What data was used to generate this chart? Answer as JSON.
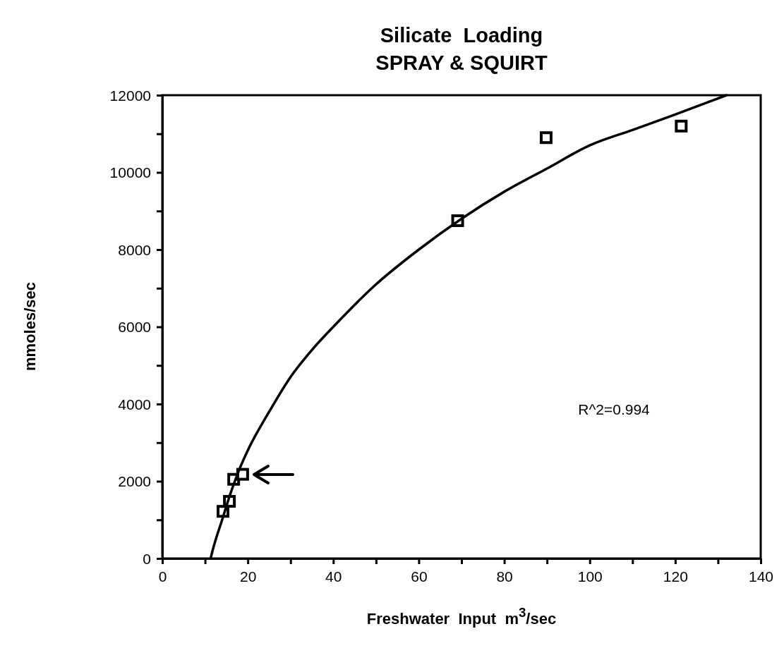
{
  "chart_data": {
    "type": "scatter",
    "title": "Silicate  Loading",
    "subtitle": "SPRAY & SQUIRT",
    "xlabel": "Freshwater  Input  m$^{3}$/sec",
    "ylabel": "mmoles/sec",
    "annotations": [
      "R^2=0.994"
    ],
    "xlim": [
      0,
      140
    ],
    "ylim": [
      0,
      12000
    ],
    "xticks": [
      0,
      {
        "value": 10,
        "label": null
      },
      20,
      {
        "value": 30,
        "label": null
      },
      40,
      {
        "value": 50,
        "label": null
      },
      60,
      {
        "value": 70,
        "label": null
      },
      80,
      {
        "value": 90,
        "label": null
      },
      100,
      {
        "value": 110,
        "label": null
      },
      120,
      {
        "value": 130,
        "label": null
      },
      140
    ],
    "yticks": [
      0,
      {
        "value": 1000,
        "label": null
      },
      2000,
      {
        "value": 3000,
        "label": null
      },
      4000,
      {
        "value": 5000,
        "label": null
      },
      6000,
      {
        "value": 7000,
        "label": null
      },
      8000,
      {
        "value": 9000,
        "label": null
      },
      10000,
      {
        "value": 11000,
        "label": null
      },
      12000
    ],
    "grid": false,
    "series": [
      {
        "marker": "square",
        "color": "#000000",
        "x": [
          14.2,
          15.7,
          16.7,
          18.8,
          69.1,
          89.8,
          121.4
        ],
        "values": [
          1220,
          1480,
          2050,
          2180,
          8750,
          10900,
          11200
        ]
      },
      {
        "type": "line",
        "marker": "none",
        "line_style": "solid",
        "color": "#000000",
        "x": [
          11.3,
          12,
          14,
          16,
          18,
          20,
          25,
          30,
          35,
          40,
          50,
          60,
          70,
          80,
          90,
          100,
          110,
          120,
          132
        ],
        "values": [
          0,
          300,
          1000,
          1700,
          2300,
          2800,
          3800,
          4700,
          5400,
          6000,
          7100,
          8000,
          8800,
          9500,
          10100,
          10700,
          11100,
          11500,
          12000
        ]
      }
    ]
  }
}
